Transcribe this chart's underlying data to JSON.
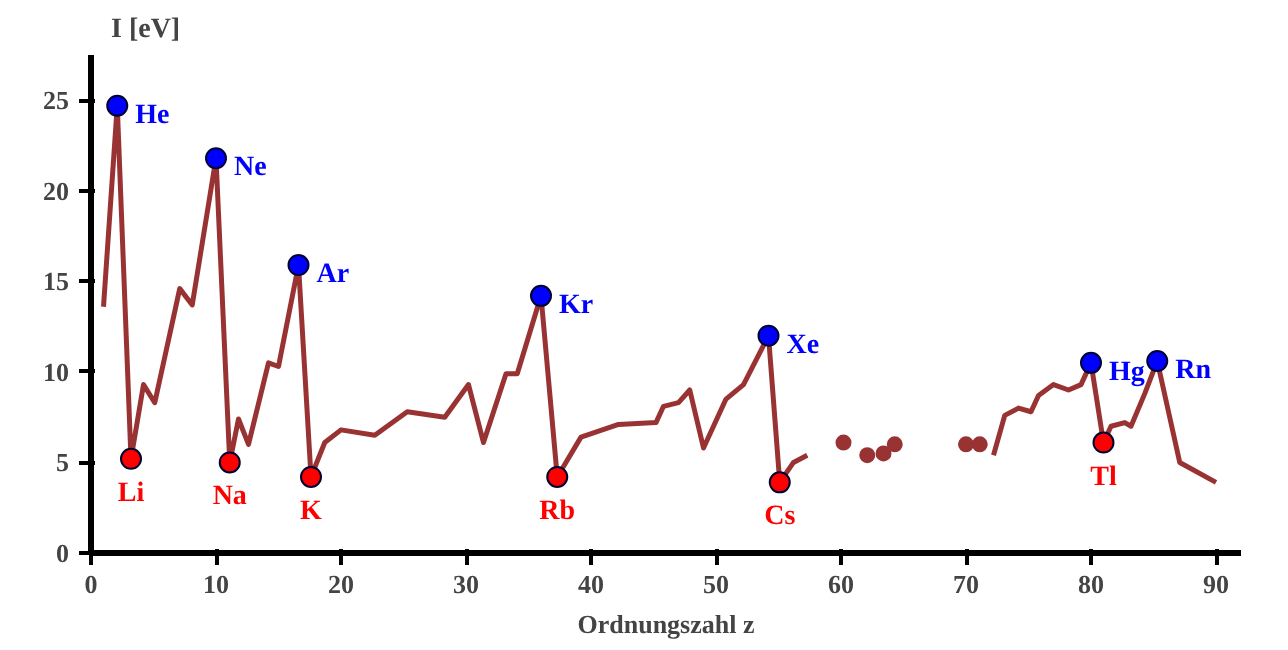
{
  "chart_data": {
    "type": "line",
    "xlabel": "Ordnungszahl z",
    "ylabel": "I [eV]",
    "xlim": [
      0,
      92
    ],
    "ylim": [
      0,
      27.5
    ],
    "xticks": [
      0,
      10,
      20,
      30,
      40,
      50,
      60,
      70,
      80,
      90
    ],
    "yticks": [
      0,
      5,
      10,
      15,
      20,
      25
    ],
    "grid": false,
    "series": [
      {
        "marker": "none",
        "color": "#993333",
        "x": [
          1,
          2.1,
          3.2,
          4.2,
          5.1,
          7.1,
          8.1,
          10,
          11.1,
          11.8,
          12.6,
          14.2,
          15.0,
          16.6,
          17.6,
          18.7,
          20,
          22.7,
          25.3,
          28.3,
          30.2,
          31.4,
          33.2,
          34.1,
          36.0,
          37.3,
          39.2,
          42.2,
          45.2,
          45.8,
          47.0,
          47.9,
          49.0,
          50.8,
          52.2,
          54.2,
          55.1,
          56.2,
          57.3,
          null,
          72.2,
          73.1,
          74.2,
          75.2,
          75.8,
          77.0,
          78.2,
          79.2,
          80.0,
          81.0,
          81.6,
          82.7,
          83.2,
          84.3,
          85.3,
          87.1,
          90.0
        ],
        "values": [
          13.6,
          24.7,
          5.2,
          9.3,
          8.3,
          14.6,
          13.7,
          21.8,
          5.0,
          7.4,
          6.0,
          10.5,
          10.3,
          15.9,
          4.2,
          6.1,
          6.8,
          6.5,
          7.8,
          7.5,
          9.3,
          6.1,
          9.9,
          9.9,
          14.2,
          4.2,
          6.4,
          7.1,
          7.2,
          8.1,
          8.3,
          9.0,
          5.8,
          8.5,
          9.3,
          12.0,
          3.9,
          5.0,
          5.4,
          null,
          5.4,
          7.6,
          8.0,
          7.8,
          8.7,
          9.3,
          9.0,
          9.3,
          10.5,
          6.1,
          7.0,
          7.2,
          7.0,
          8.8,
          10.6,
          5.0,
          3.9
        ]
      },
      {
        "type": "scatter",
        "marker": "circle",
        "color": "#993333",
        "x": [
          60.2,
          62.1,
          63.4,
          64.3,
          70.0,
          71.1
        ],
        "values": [
          6.1,
          5.4,
          5.5,
          6.0,
          6.0,
          6.0
        ]
      },
      {
        "type": "scatter",
        "marker": "circle",
        "color": "#0000ff",
        "x": [
          2.1,
          10,
          16.6,
          36.0,
          54.2,
          80.0,
          85.3
        ],
        "values": [
          24.7,
          21.8,
          15.9,
          14.2,
          12.0,
          10.5,
          10.6
        ]
      },
      {
        "type": "scatter",
        "marker": "circle",
        "color": "#ff0000",
        "x": [
          3.2,
          11.1,
          17.6,
          37.3,
          55.1,
          81.0
        ],
        "values": [
          5.2,
          5.0,
          4.2,
          4.2,
          3.9,
          6.1
        ]
      }
    ],
    "annotations": [
      {
        "text": "He",
        "x": 2.1,
        "y": 24.7
      },
      {
        "text": "Ne",
        "x": 10,
        "y": 21.8
      },
      {
        "text": "Ar",
        "x": 16.6,
        "y": 15.9
      },
      {
        "text": "Kr",
        "x": 36.0,
        "y": 14.2
      },
      {
        "text": "Xe",
        "x": 54.2,
        "y": 12.0
      },
      {
        "text": "Hg",
        "x": 80.0,
        "y": 10.5
      },
      {
        "text": "Rn",
        "x": 85.3,
        "y": 10.6
      },
      {
        "text": "Li",
        "x": 3.2,
        "y": 5.2
      },
      {
        "text": "Na",
        "x": 11.1,
        "y": 5.0
      },
      {
        "text": "K",
        "x": 17.6,
        "y": 4.2
      },
      {
        "text": "Rb",
        "x": 37.3,
        "y": 4.2
      },
      {
        "text": "Cs",
        "x": 55.1,
        "y": 3.9
      },
      {
        "text": "Tl",
        "x": 81.0,
        "y": 6.1
      }
    ]
  }
}
